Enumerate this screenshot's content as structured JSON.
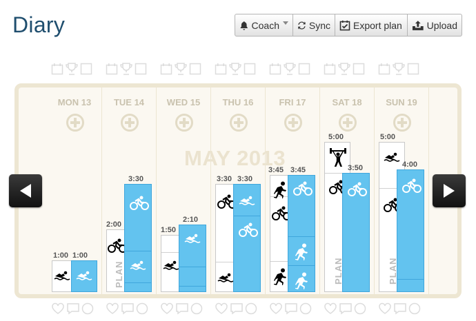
{
  "page": {
    "title": "Diary"
  },
  "toolbar": {
    "coach": "Coach",
    "sync": "Sync",
    "export": "Export plan",
    "upload": "Upload"
  },
  "calendar": {
    "month_label": "MAY 2013",
    "days": [
      {
        "name": "MON 13",
        "plan_duration": "1:00",
        "done_duration": "1:00",
        "plan_label": ""
      },
      {
        "name": "TUE 14",
        "plan_duration": "2:00",
        "done_duration": "3:30",
        "plan_label": "PLAN"
      },
      {
        "name": "WED 15",
        "plan_duration": "1:50",
        "done_duration": "2:10",
        "plan_label": ""
      },
      {
        "name": "THU 16",
        "plan_duration": "3:30",
        "done_duration": "3:30",
        "plan_label": ""
      },
      {
        "name": "FRI 17",
        "plan_duration": "3:45",
        "done_duration": "3:45",
        "plan_label": ""
      },
      {
        "name": "SAT 18",
        "plan_duration": "5:00",
        "done_duration": "3:50",
        "plan_label": "PLAN"
      },
      {
        "name": "SUN 19",
        "plan_duration": "5:00",
        "done_duration": "4:00",
        "plan_label": "PLAN"
      }
    ]
  },
  "colors": {
    "completed": "#63c3ef",
    "planned": "#ffffff",
    "panel_bg": "#fbf8f1",
    "title": "#1f4e6e"
  },
  "icons": {
    "top_row": [
      "calendar-icon",
      "trophy-icon",
      "note-icon"
    ],
    "bottom_row": [
      "heart-icon",
      "comment-icon",
      "circle-icon"
    ],
    "activities": [
      "swim-icon",
      "bike-icon",
      "run-icon",
      "weights-icon"
    ]
  }
}
